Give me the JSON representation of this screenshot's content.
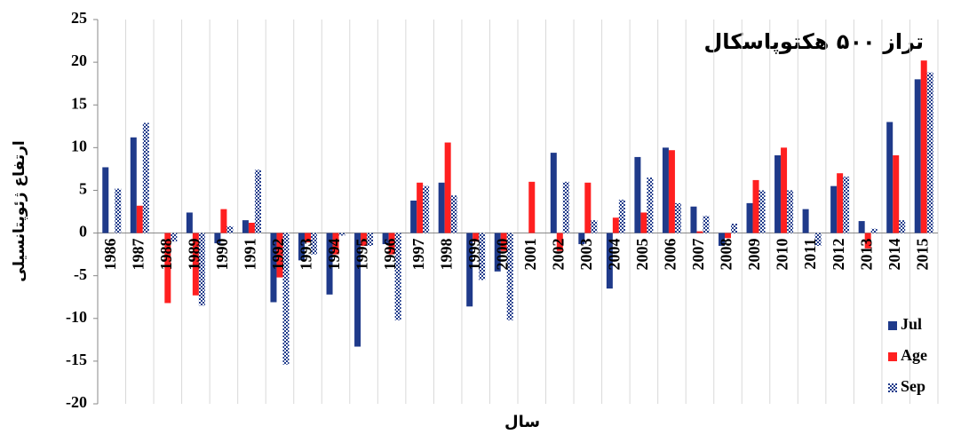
{
  "chart_data": {
    "type": "bar",
    "title": "تراز ۵۰۰ هکتوپاسکال",
    "y_label": "ارتفاع ژئوپتانسیلی",
    "x_label": "سال",
    "categories": [
      "1986",
      "1987",
      "1988",
      "1989",
      "1990",
      "1991",
      "1992",
      "1993",
      "1994",
      "1995",
      "1996",
      "1997",
      "1998",
      "1999",
      "2000",
      "2001",
      "2002",
      "2003",
      "2004",
      "2005",
      "2006",
      "2007",
      "2008",
      "2009",
      "2010",
      "2011",
      "2012",
      "2013",
      "2014",
      "2015"
    ],
    "series": [
      {
        "name": "Jul",
        "color": "#1f3a8a",
        "values": [
          7.7,
          11.2,
          0,
          2.4,
          -1.2,
          1.5,
          -8.1,
          -3.2,
          -7.2,
          -13.3,
          -1.3,
          3.8,
          5.9,
          -8.6,
          -4.5,
          0,
          9.4,
          -1.3,
          -6.5,
          8.9,
          10.0,
          3.1,
          -1.5,
          3.5,
          9.1,
          2.8,
          5.5,
          1.4,
          13.0,
          18.0
        ]
      },
      {
        "name": "Age",
        "color": "#ff2020",
        "values": [
          0,
          3.2,
          -8.2,
          -7.3,
          2.8,
          1.2,
          -5.2,
          -1.1,
          -2.5,
          -1.5,
          -2.5,
          5.9,
          10.6,
          -1.0,
          -2.1,
          6.0,
          -2.1,
          5.9,
          1.8,
          2.4,
          9.7,
          0.2,
          -0.6,
          6.2,
          10.0,
          0,
          7.0,
          -1.8,
          9.1,
          20.2
        ]
      },
      {
        "name": "Sep",
        "color": "#1f3a8a",
        "pattern": "checker",
        "values": [
          5.2,
          12.9,
          -1.0,
          -8.5,
          0.8,
          7.4,
          -15.4,
          -2.5,
          -0.3,
          -1.5,
          -10.2,
          5.5,
          4.4,
          -5.5,
          -10.2,
          0,
          6.0,
          1.5,
          3.9,
          6.5,
          3.5,
          2.0,
          1.1,
          5.0,
          5.0,
          -1.5,
          6.6,
          0.5,
          1.5,
          18.8
        ]
      }
    ],
    "ylim": [
      -20,
      25
    ],
    "yticks": [
      -20,
      -15,
      -10,
      -5,
      0,
      5,
      10,
      15,
      20,
      25
    ],
    "legend": "bottom-right"
  }
}
